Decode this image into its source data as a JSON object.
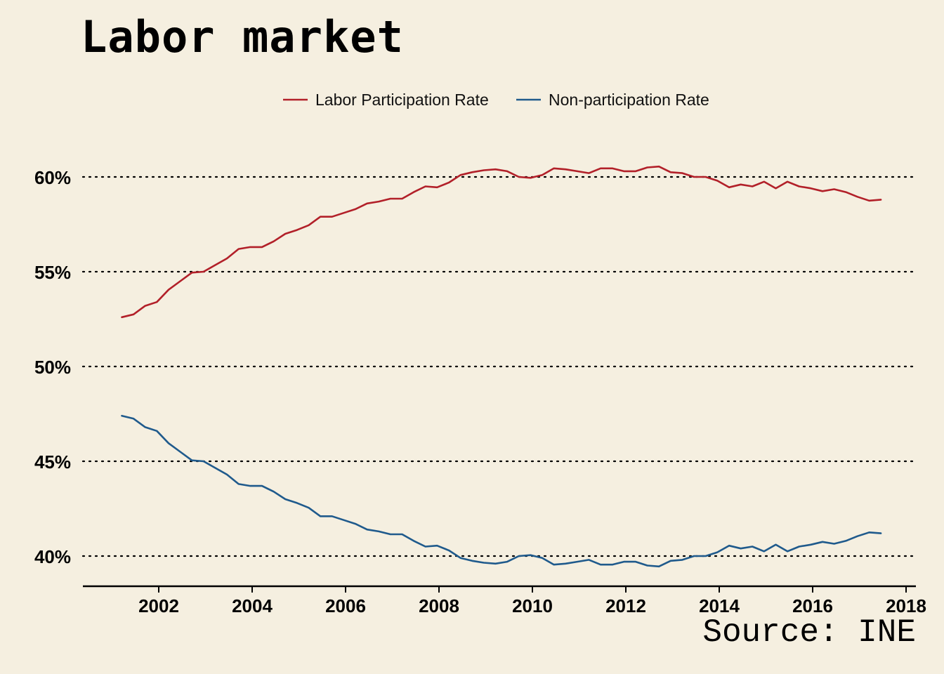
{
  "title": "Labor market",
  "source": "Source: INE",
  "colors": {
    "background": "#F5EFE0",
    "participation": "#B22029",
    "non_participation": "#1F5A8C"
  },
  "chart_data": {
    "type": "line",
    "title": "Labor market",
    "xlabel": "",
    "ylabel": "",
    "xlim": [
      2000.4,
      2018.2
    ],
    "ylim": [
      38.5,
      63
    ],
    "x_ticks": [
      2002,
      2004,
      2006,
      2008,
      2010,
      2012,
      2014,
      2016,
      2018
    ],
    "x_tick_labels": [
      "2002",
      "2004",
      "2006",
      "2008",
      "2010",
      "2012",
      "2014",
      "2016",
      "2018"
    ],
    "y_ticks": [
      40,
      45,
      50,
      55,
      60
    ],
    "y_tick_labels": [
      "40%",
      "45%",
      "50%",
      "55%",
      "60%"
    ],
    "grid": "horizontal dotted",
    "legend_position": "top",
    "x": [
      2001.21,
      2001.46,
      2001.71,
      2001.96,
      2002.21,
      2002.46,
      2002.71,
      2002.96,
      2003.21,
      2003.46,
      2003.71,
      2003.96,
      2004.21,
      2004.46,
      2004.71,
      2004.96,
      2005.21,
      2005.46,
      2005.71,
      2005.96,
      2006.21,
      2006.46,
      2006.71,
      2006.96,
      2007.21,
      2007.46,
      2007.71,
      2007.96,
      2008.21,
      2008.46,
      2008.71,
      2008.96,
      2009.21,
      2009.46,
      2009.71,
      2009.96,
      2010.21,
      2010.46,
      2010.71,
      2010.96,
      2011.21,
      2011.46,
      2011.71,
      2011.96,
      2012.21,
      2012.46,
      2012.71,
      2012.96,
      2013.21,
      2013.46,
      2013.71,
      2013.96,
      2014.21,
      2014.46,
      2014.71,
      2014.96,
      2015.21,
      2015.46,
      2015.71,
      2015.96,
      2016.21,
      2016.46,
      2016.71,
      2016.96,
      2017.21,
      2017.46
    ],
    "series": [
      {
        "name": "Labor Participation Rate",
        "color": "#B22029",
        "values": [
          52.6,
          52.75,
          53.2,
          53.4,
          54.05,
          54.5,
          54.95,
          55.0,
          55.35,
          55.7,
          56.2,
          56.3,
          56.3,
          56.6,
          57.0,
          57.2,
          57.45,
          57.9,
          57.9,
          58.1,
          58.3,
          58.6,
          58.7,
          58.85,
          58.85,
          59.2,
          59.5,
          59.45,
          59.7,
          60.1,
          60.25,
          60.35,
          60.4,
          60.3,
          60.0,
          59.95,
          60.1,
          60.45,
          60.4,
          60.3,
          60.2,
          60.45,
          60.45,
          60.3,
          60.3,
          60.5,
          60.55,
          60.25,
          60.2,
          60.0,
          60.0,
          59.8,
          59.45,
          59.6,
          59.5,
          59.75,
          59.4,
          59.75,
          59.5,
          59.4,
          59.25,
          59.35,
          59.2,
          58.95,
          58.75,
          58.8
        ]
      },
      {
        "name": "Non-participation Rate",
        "color": "#1F5A8C",
        "values": [
          47.4,
          47.25,
          46.8,
          46.6,
          45.95,
          45.5,
          45.05,
          45.0,
          44.65,
          44.3,
          43.8,
          43.7,
          43.7,
          43.4,
          43.0,
          42.8,
          42.55,
          42.1,
          42.1,
          41.9,
          41.7,
          41.4,
          41.3,
          41.15,
          41.15,
          40.8,
          40.5,
          40.55,
          40.3,
          39.9,
          39.75,
          39.65,
          39.6,
          39.7,
          40.0,
          40.05,
          39.9,
          39.55,
          39.6,
          39.7,
          39.8,
          39.55,
          39.55,
          39.7,
          39.7,
          39.5,
          39.45,
          39.75,
          39.8,
          40.0,
          40.0,
          40.2,
          40.55,
          40.4,
          40.5,
          40.25,
          40.6,
          40.25,
          40.5,
          40.6,
          40.75,
          40.65,
          40.8,
          41.05,
          41.25,
          41.2
        ]
      }
    ]
  }
}
